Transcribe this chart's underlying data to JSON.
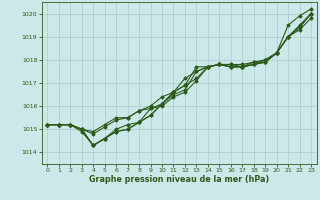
{
  "title": "Graphe pression niveau de la mer (hPa)",
  "bg_color": "#cce8e8",
  "grid_color": "#aacccc",
  "line_color": "#2d5a1b",
  "x_ticks": [
    0,
    1,
    2,
    3,
    4,
    5,
    6,
    7,
    8,
    9,
    10,
    11,
    12,
    13,
    14,
    15,
    16,
    17,
    18,
    19,
    20,
    21,
    22,
    23
  ],
  "ylim": [
    1013.5,
    1020.5
  ],
  "yticks": [
    1014,
    1015,
    1016,
    1017,
    1018,
    1019,
    1020
  ],
  "series": [
    [
      1015.2,
      1015.2,
      1015.2,
      1015.0,
      1014.9,
      1015.2,
      1015.5,
      1015.5,
      1015.8,
      1016.0,
      1016.4,
      1016.6,
      1017.2,
      1017.5,
      1017.7,
      1017.8,
      1017.8,
      1017.8,
      1017.9,
      1018.0,
      1018.3,
      1019.0,
      1019.4,
      1020.0
    ],
    [
      1015.2,
      1015.2,
      1015.2,
      1015.0,
      1014.8,
      1015.1,
      1015.4,
      1015.5,
      1015.8,
      1015.9,
      1016.0,
      1016.4,
      1016.6,
      1017.1,
      1017.7,
      1017.8,
      1017.7,
      1017.7,
      1017.8,
      1018.0,
      1018.3,
      1019.0,
      1019.4,
      1020.0
    ],
    [
      1015.2,
      1015.2,
      1015.2,
      1014.9,
      1014.3,
      1014.6,
      1015.0,
      1015.2,
      1015.3,
      1015.9,
      1016.1,
      1016.5,
      1016.7,
      1017.5,
      1017.7,
      1017.8,
      1017.8,
      1017.7,
      1017.9,
      1017.9,
      1018.3,
      1019.0,
      1019.5,
      1020.0
    ],
    [
      1015.2,
      1015.2,
      1015.2,
      1015.0,
      1014.3,
      1014.6,
      1014.9,
      1015.0,
      1015.3,
      1015.6,
      1016.1,
      1016.6,
      1016.9,
      1017.2,
      1017.7,
      1017.8,
      1017.7,
      1017.7,
      1017.8,
      1017.9,
      1018.3,
      1019.0,
      1019.3,
      1019.8
    ]
  ],
  "series_high": [
    1015.2,
    1015.2,
    1015.2,
    1015.0,
    1014.3,
    1014.6,
    1014.9,
    1015.0,
    1015.3,
    1015.6,
    1016.1,
    1016.6,
    1016.9,
    1017.7,
    1017.7,
    1017.8,
    1017.7,
    1017.7,
    1017.8,
    1017.9,
    1018.3,
    1019.5,
    1019.9,
    1020.2
  ]
}
